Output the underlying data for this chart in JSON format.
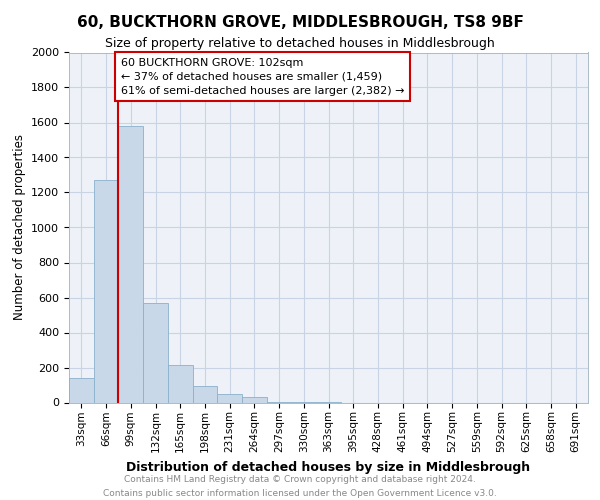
{
  "title": "60, BUCKTHORN GROVE, MIDDLESBROUGH, TS8 9BF",
  "subtitle": "Size of property relative to detached houses in Middlesbrough",
  "xlabel": "Distribution of detached houses by size in Middlesbrough",
  "ylabel": "Number of detached properties",
  "bar_labels": [
    "33sqm",
    "66sqm",
    "99sqm",
    "132sqm",
    "165sqm",
    "198sqm",
    "231sqm",
    "264sqm",
    "297sqm",
    "330sqm",
    "363sqm",
    "395sqm",
    "428sqm",
    "461sqm",
    "494sqm",
    "527sqm",
    "559sqm",
    "592sqm",
    "625sqm",
    "658sqm",
    "691sqm"
  ],
  "bar_values": [
    140,
    1270,
    1580,
    570,
    215,
    95,
    50,
    30,
    5,
    3,
    2,
    0,
    0,
    0,
    0,
    0,
    0,
    0,
    0,
    0,
    0
  ],
  "bar_color": "#c8d8e8",
  "bar_edge_color": "#8ab0cc",
  "vline_color": "#cc0000",
  "annotation_text_line1": "60 BUCKTHORN GROVE: 102sqm",
  "annotation_text_line2": "← 37% of detached houses are smaller (1,459)",
  "annotation_text_line3": "61% of semi-detached houses are larger (2,382) →",
  "ylim": [
    0,
    2000
  ],
  "yticks": [
    0,
    200,
    400,
    600,
    800,
    1000,
    1200,
    1400,
    1600,
    1800,
    2000
  ],
  "footer_line1": "Contains HM Land Registry data © Crown copyright and database right 2024.",
  "footer_line2": "Contains public sector information licensed under the Open Government Licence v3.0.",
  "grid_color": "#c8d4e4",
  "background_color": "#eef2f8"
}
